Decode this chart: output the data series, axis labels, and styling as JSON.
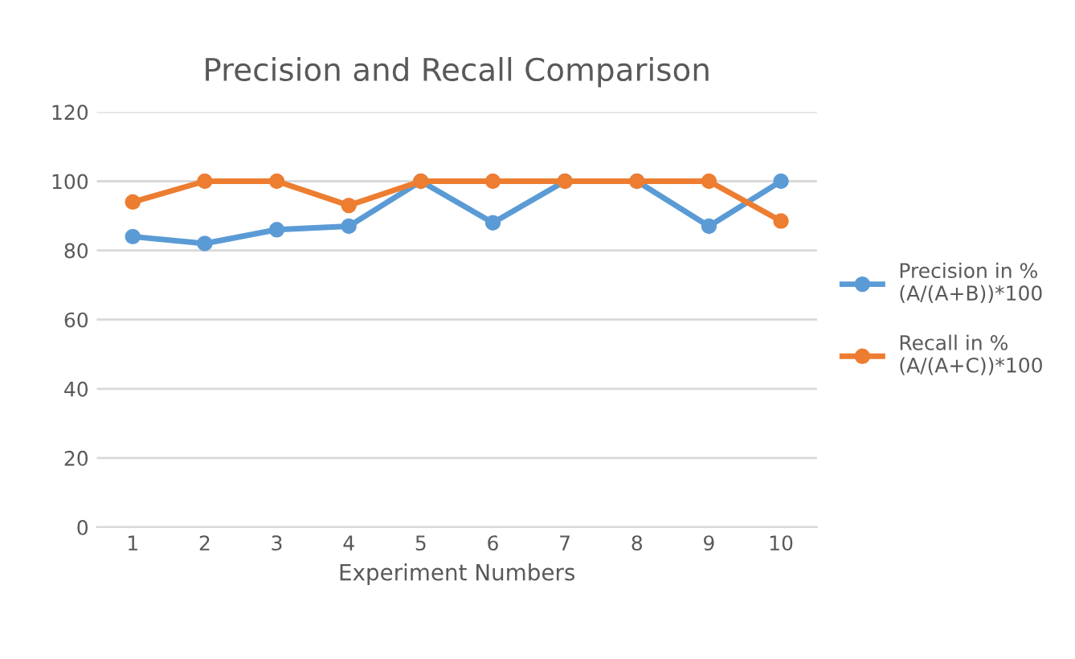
{
  "chart_data": {
    "type": "line",
    "title": "Precision and Recall Comparison",
    "xlabel": "Experiment Numbers",
    "categories": [
      "1",
      "2",
      "3",
      "4",
      "5",
      "6",
      "7",
      "8",
      "9",
      "10"
    ],
    "series": [
      {
        "name": "Precision in %\n(A/(A+B))*100",
        "color": "#5b9bd5",
        "values": [
          84,
          82,
          86,
          87,
          100,
          88,
          100,
          100,
          87,
          100
        ]
      },
      {
        "name": "Recall in %\n(A/(A+C))*100",
        "color": "#ed7d31",
        "values": [
          94,
          100,
          100,
          93,
          100,
          100,
          100,
          100,
          100,
          88.5
        ]
      }
    ],
    "ylim": [
      0,
      120
    ],
    "yticks": [
      0,
      20,
      40,
      60,
      80,
      100,
      120
    ],
    "grid": "y",
    "legend": "right",
    "marker": "circle",
    "line_style": "solid"
  }
}
